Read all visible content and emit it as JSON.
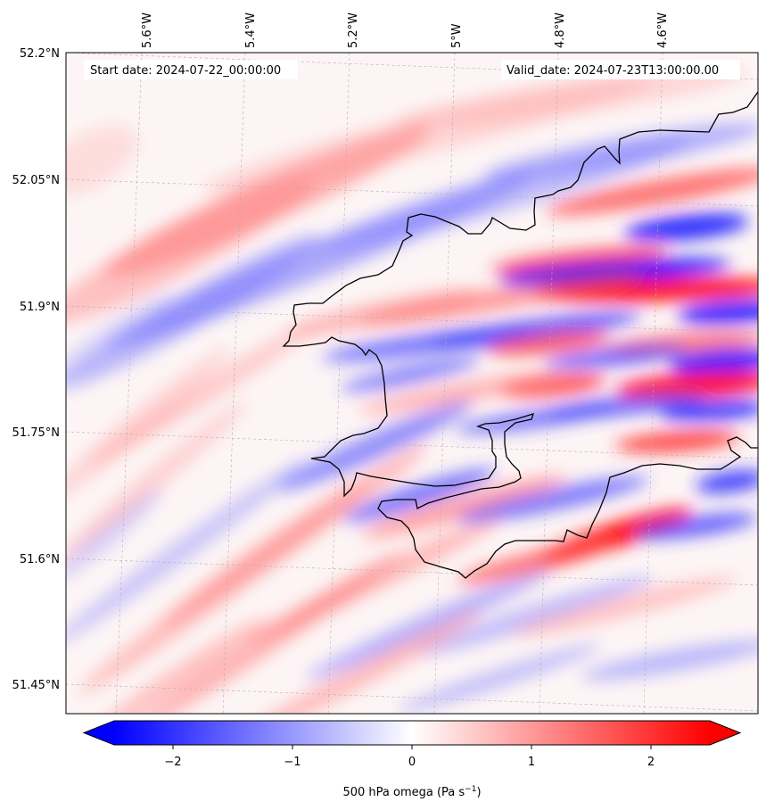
{
  "map": {
    "start_label": "Start date: 2024-07-22_00:00:00",
    "valid_label": "Valid_date: 2024-07-23T13:00:00.00",
    "lon_labels": [
      "5.6°W",
      "5.4°W",
      "5.2°W",
      "5°W",
      "4.8°W",
      "4.6°W"
    ],
    "lat_labels": [
      "52.2°N",
      "52.05°N",
      "51.9°N",
      "51.75°N",
      "51.6°N",
      "51.45°N"
    ]
  },
  "colorbar": {
    "label": "500 hPa omega (Pa s",
    "label_exp": "−1",
    "label_close": ")",
    "ticks": [
      "−2",
      "−1",
      "0",
      "1",
      "2"
    ],
    "range": [
      -2.5,
      2.5
    ],
    "colors": {
      "negative": "#0000ff",
      "zero": "#ffffff",
      "positive": "#ff0000"
    }
  },
  "colors": {
    "coastline": "#000000",
    "grid": "#b0b0b0",
    "label_box": "#ffffff"
  }
}
